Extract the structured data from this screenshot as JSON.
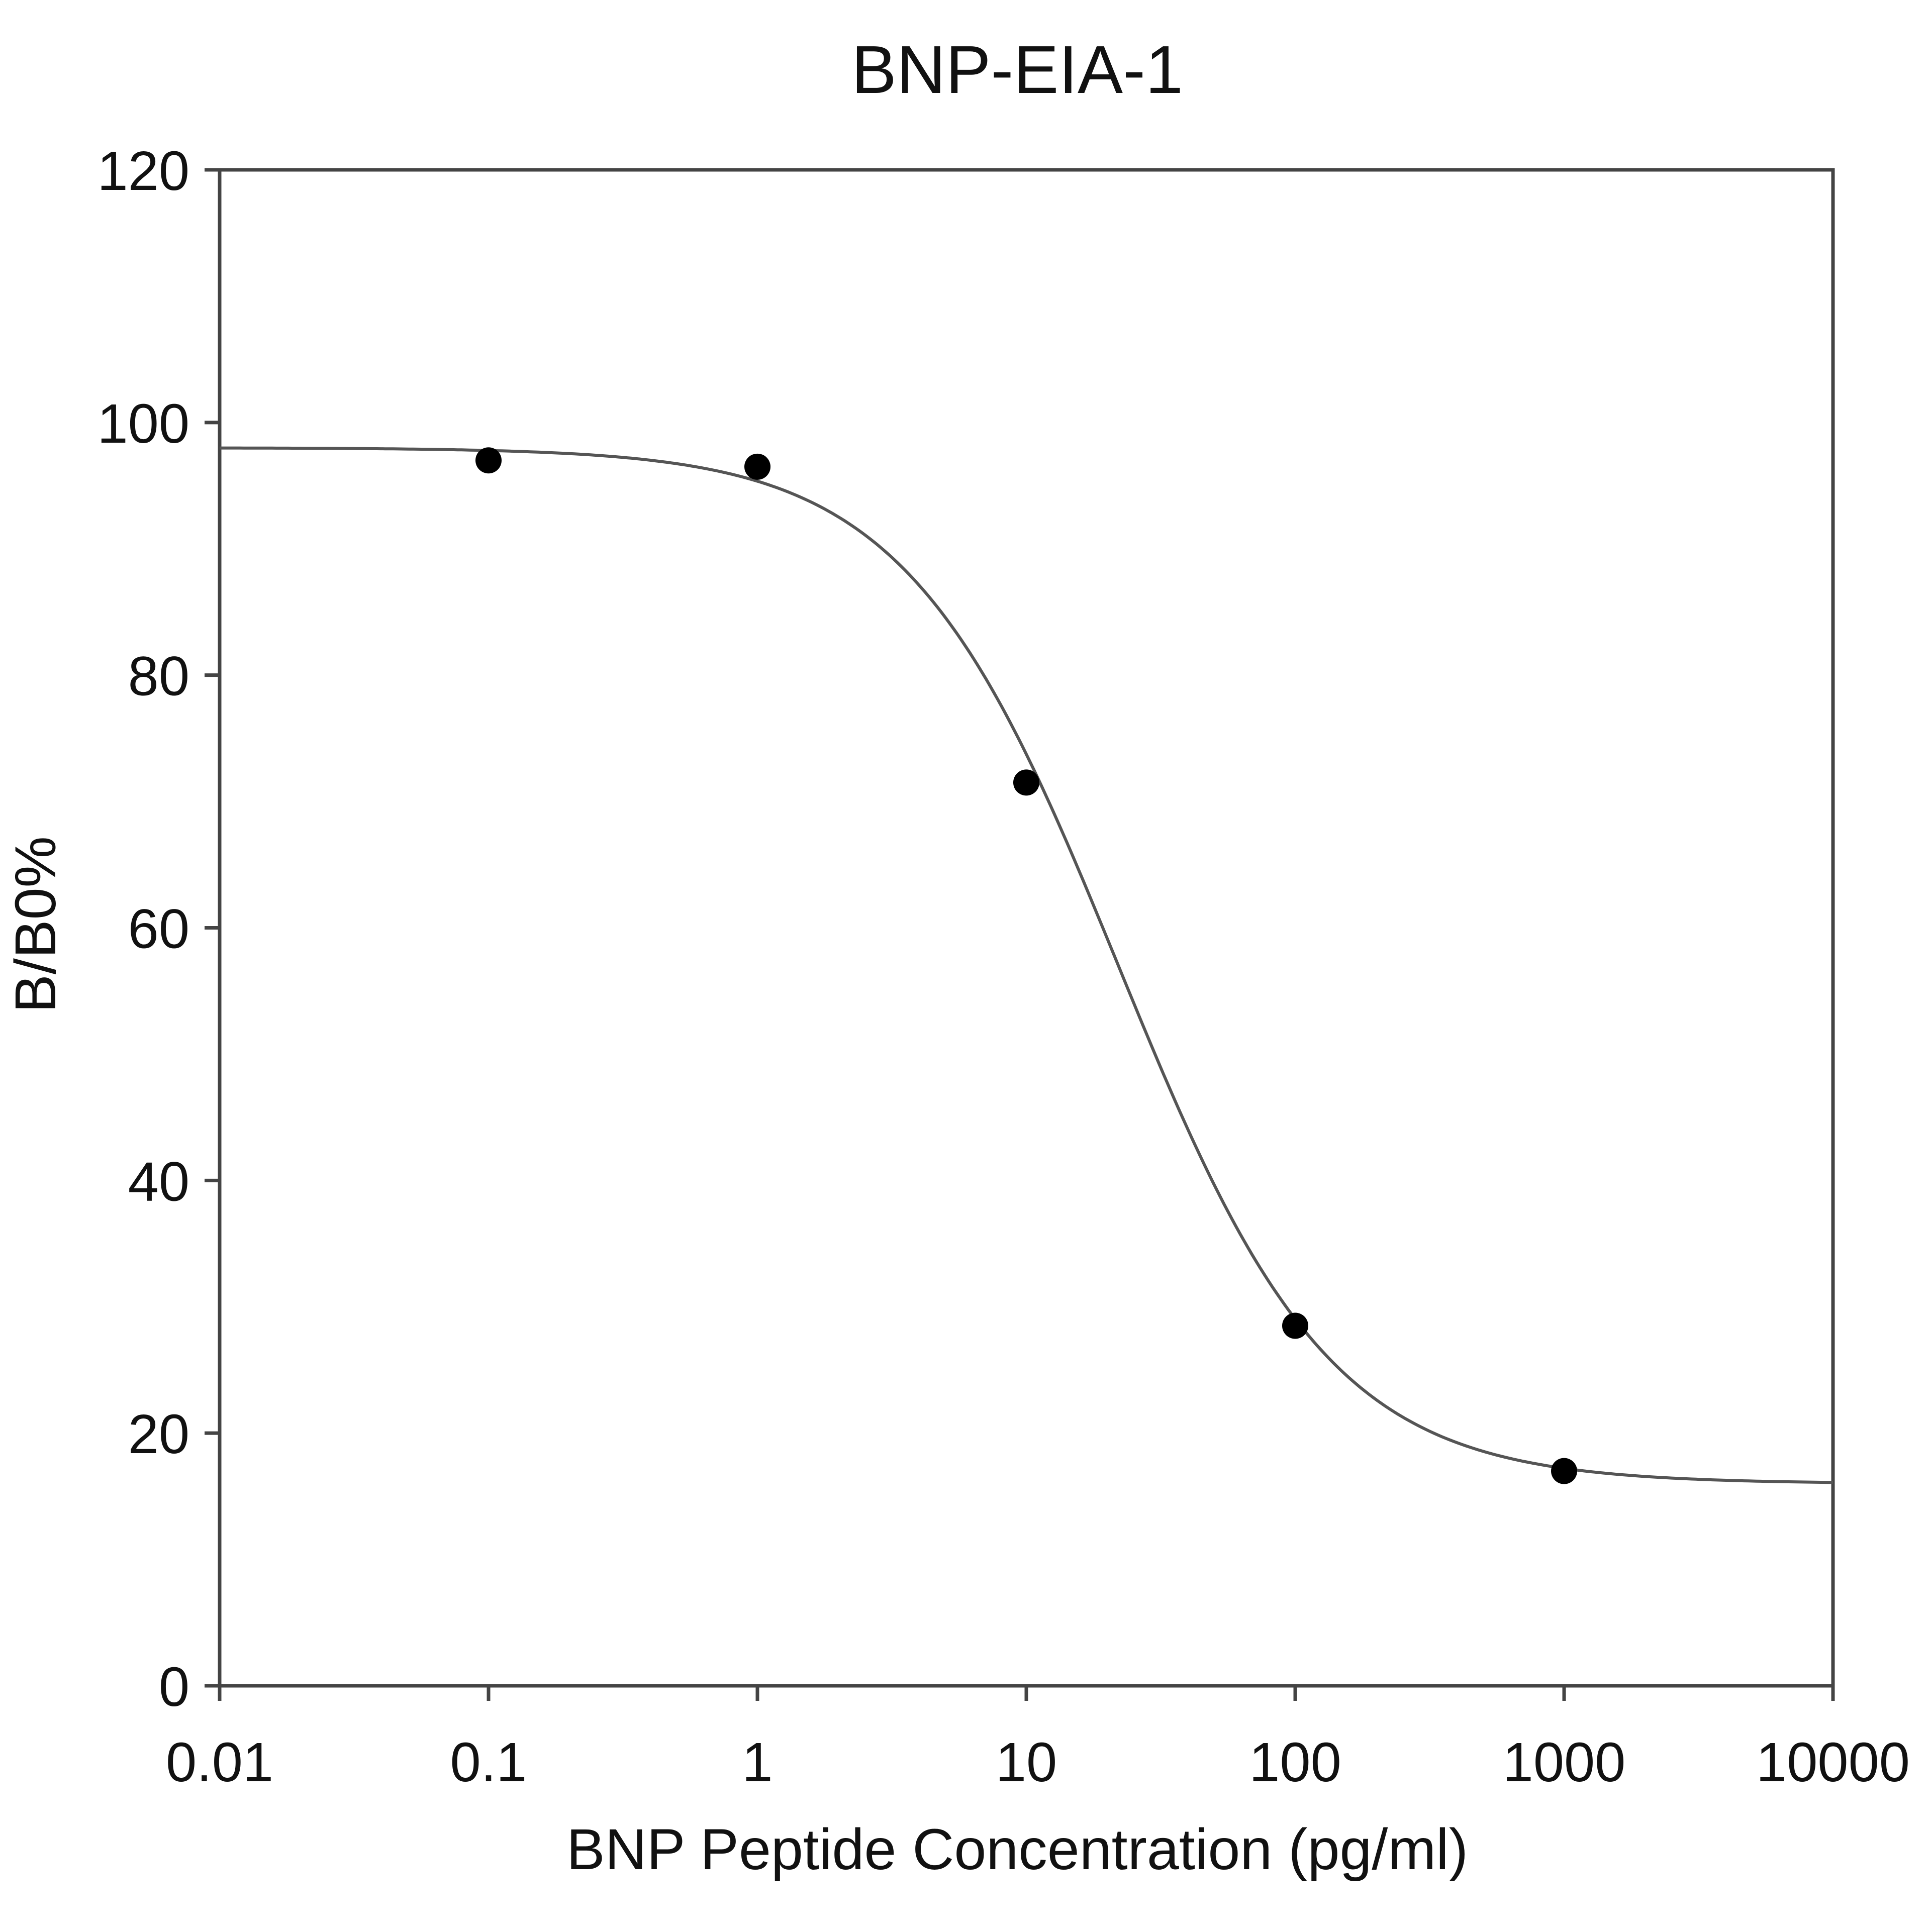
{
  "chart_data": {
    "type": "scatter",
    "title": "BNP-EIA-1",
    "xlabel": "BNP Peptide Concentration (pg/ml)",
    "ylabel": "B/B0%",
    "x_scale": "log",
    "xlim": [
      0.01,
      10000
    ],
    "ylim": [
      0,
      120
    ],
    "x_ticks": [
      0.01,
      0.1,
      1,
      10,
      100,
      1000,
      10000
    ],
    "x_tick_labels": [
      "0.01",
      "0.1",
      "1",
      "10",
      "100",
      "1000",
      "10000"
    ],
    "y_ticks": [
      0,
      20,
      40,
      60,
      80,
      100,
      120
    ],
    "y_tick_labels": [
      "0",
      "20",
      "40",
      "60",
      "80",
      "100",
      "120"
    ],
    "grid": false,
    "series": [
      {
        "x": [
          0.1,
          1,
          10,
          100,
          1000
        ],
        "y": [
          97,
          96.5,
          71.5,
          28.5,
          17
        ]
      }
    ],
    "fit_curve": {
      "model": "4PL",
      "top": 98,
      "bottom": 16,
      "ec50": 22,
      "hill": 1.1
    },
    "colors": {
      "points": "#000000",
      "curve": "#555555",
      "axes": "#444444"
    }
  }
}
